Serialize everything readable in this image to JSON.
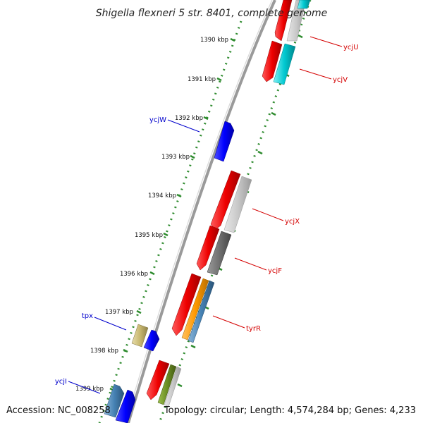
{
  "title": "Shigella flexneri 5 str. 8401, complete genome",
  "accession": "Accession: NC_008258",
  "topology": "Topology: circular; Length: 4,574,284 bp; Genes: 4,233",
  "colors": {
    "backbone": "#8a8a8a",
    "tick": "#2e8b2e",
    "label_forward": "#d40000",
    "label_reverse": "#0000cc",
    "gene_red": "#ee0000",
    "gene_blue": "#0000ff",
    "gene_cyan": "#00c8d0",
    "gene_lightgray": "#c8c8c8",
    "gene_darkgray": "#707070",
    "gene_orange": "#ff9900",
    "gene_steelblue": "#4682b4",
    "gene_khaki": "#c8b870",
    "gene_olive": "#6b8e23"
  },
  "kbp_labels": [
    "1390 kbp",
    "1391 kbp",
    "1392 kbp",
    "1393 kbp",
    "1394 kbp",
    "1395 kbp",
    "1396 kbp",
    "1397 kbp",
    "1398 kbp",
    "1399 kbp"
  ],
  "gene_labels": {
    "ycjU": "ycjU",
    "ycjV": "ycjV",
    "ycjW": "ycjW",
    "ycjX": "ycjX",
    "ycjF": "ycjF",
    "tyrR": "tyrR",
    "tpx": "tpx",
    "ycjI": "ycjI"
  }
}
